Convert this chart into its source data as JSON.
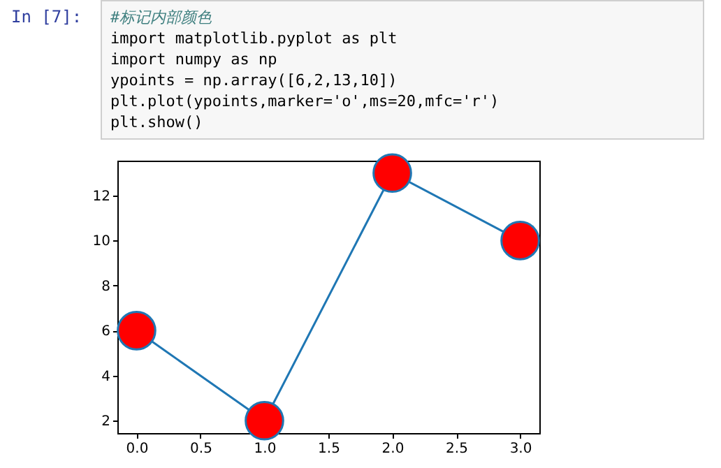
{
  "chart_data": {
    "type": "line",
    "annotations": [
      "In [7]:",
      "#标记内部颜色",
      "import matplotlib.pyplot as plt",
      "import numpy as np",
      "ypoints = np.array([6,2,13,10])",
      "plt.plot(ypoints,marker='o',ms=20,mfc='r')",
      "plt.show()"
    ],
    "x": [
      0,
      1,
      2,
      3
    ],
    "series": [
      {
        "color": "#1f77b4",
        "colors": [
          "#ff0000",
          "#ff0000",
          "#ff0000",
          "#ff0000"
        ],
        "values": [
          6,
          2,
          13,
          10
        ]
      }
    ],
    "xlim": [
      -0.15,
      3.15
    ],
    "xticks": [
      {
        "value": 0,
        "label": "0.0"
      },
      0.5,
      {
        "value": 1,
        "label": "1.0"
      },
      1.5,
      {
        "value": 2,
        "label": "2.0"
      },
      2.5,
      {
        "value": 3,
        "label": "3.0"
      }
    ],
    "ylim": [
      1.45,
      13.55
    ],
    "yticks": [
      2,
      4,
      6,
      8,
      10,
      12
    ],
    "grid": false,
    "marker": "circle",
    "line_style": "solid"
  }
}
